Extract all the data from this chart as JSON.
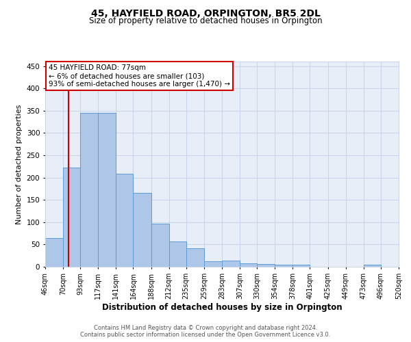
{
  "title": "45, HAYFIELD ROAD, ORPINGTON, BR5 2DL",
  "subtitle": "Size of property relative to detached houses in Orpington",
  "xlabel": "Distribution of detached houses by size in Orpington",
  "ylabel": "Number of detached properties",
  "footer_line1": "Contains HM Land Registry data © Crown copyright and database right 2024.",
  "footer_line2": "Contains public sector information licensed under the Open Government Licence v3.0.",
  "bin_edges": [
    46,
    70,
    93,
    117,
    141,
    164,
    188,
    212,
    235,
    259,
    283,
    307,
    330,
    354,
    378,
    401,
    425,
    449,
    473,
    496,
    520
  ],
  "bar_heights": [
    65,
    222,
    345,
    345,
    208,
    165,
    97,
    57,
    42,
    13,
    14,
    7,
    6,
    4,
    5,
    0,
    0,
    0,
    4,
    0
  ],
  "bar_color": "#aec6e8",
  "bar_edge_color": "#5b9bd5",
  "grid_color": "#c8d4e8",
  "bg_color": "#e8eef8",
  "annotation_box_text": "45 HAYFIELD ROAD: 77sqm\n← 6% of detached houses are smaller (103)\n93% of semi-detached houses are larger (1,470) →",
  "vline_x": 77,
  "vline_color": "#cc0000",
  "annotation_box_color": "#cc0000",
  "ylim": [
    0,
    460
  ],
  "yticks": [
    0,
    50,
    100,
    150,
    200,
    250,
    300,
    350,
    400,
    450
  ]
}
